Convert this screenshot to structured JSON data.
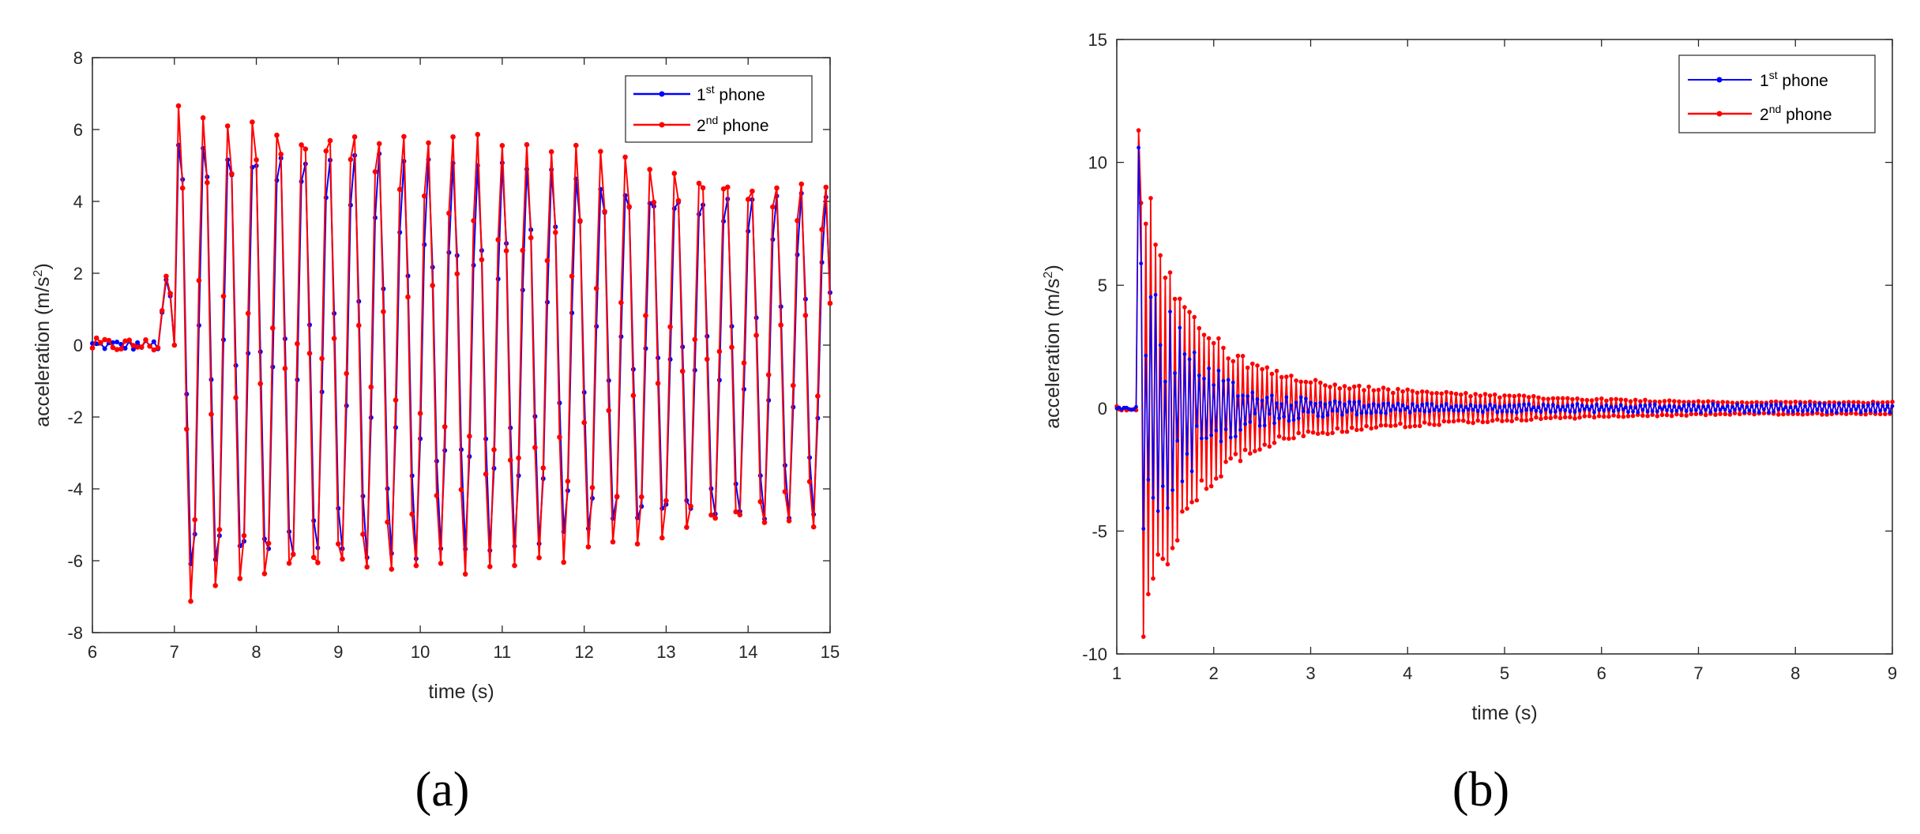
{
  "colors": {
    "phone1": "#0000ff",
    "phone2": "#ff0000",
    "axis": "#262626"
  },
  "chart_data": [
    {
      "type": "line",
      "panel_label": "(a)",
      "xlabel": "time (s)",
      "ylabel": "acceleration (m/s²)",
      "ylabel_base": "acceleration (m/s",
      "ylabel_sup": "2",
      "ylabel_tail": ")",
      "xlim": [
        6,
        15
      ],
      "ylim": [
        -8,
        8
      ],
      "xticks": [
        "6",
        "7",
        "8",
        "9",
        "10",
        "11",
        "12",
        "13",
        "14",
        "15"
      ],
      "yticks": [
        "-8",
        "-6",
        "-4",
        "-2",
        "0",
        "2",
        "4",
        "6",
        "8"
      ],
      "legend_position": "top-right",
      "series": [
        {
          "name": "1st phone",
          "name_base": "1",
          "name_sup": "st",
          "name_tail": " phone"
        },
        {
          "name": "2nd phone",
          "name_base": "2",
          "name_sup": "nd",
          "name_tail": " phone"
        }
      ],
      "signal": {
        "sample_interval_s": 0.05,
        "quiet_end_s": 6.8,
        "ramp_peak": [
          6.92,
          2.3
        ],
        "oscillation_start_s": 7.0,
        "frequency_hz": 3.3,
        "amplitude_start": 6.6,
        "amplitude_end": 4.6,
        "phone2_gain": 1.08
      }
    },
    {
      "type": "line",
      "panel_label": "(b)",
      "xlabel": "time (s)",
      "ylabel": "acceleration (m/s²)",
      "ylabel_base": "acceleration (m/s",
      "ylabel_sup": "2",
      "ylabel_tail": ")",
      "xlim": [
        1,
        9
      ],
      "ylim": [
        -10,
        15
      ],
      "xticks": [
        "1",
        "2",
        "3",
        "4",
        "5",
        "6",
        "7",
        "8",
        "9"
      ],
      "yticks": [
        "-10",
        "-5",
        "0",
        "5",
        "10",
        "15"
      ],
      "legend_position": "top-right",
      "series": [
        {
          "name": "1st phone",
          "name_base": "1",
          "name_sup": "st",
          "name_tail": " phone"
        },
        {
          "name": "2nd phone",
          "name_base": "2",
          "name_sup": "nd",
          "name_tail": " phone"
        }
      ],
      "signal": {
        "sample_interval_s": 0.025,
        "impact_time_s": 1.2,
        "peak_phone1": 10.6,
        "peak_phone2": 11.3,
        "min_phone2": -9.3,
        "decay_tau_s": 0.45,
        "residual_amplitude_phone1": 0.45,
        "residual_amplitude_phone2": 1.7,
        "late_amplitude": 0.25
      }
    }
  ]
}
